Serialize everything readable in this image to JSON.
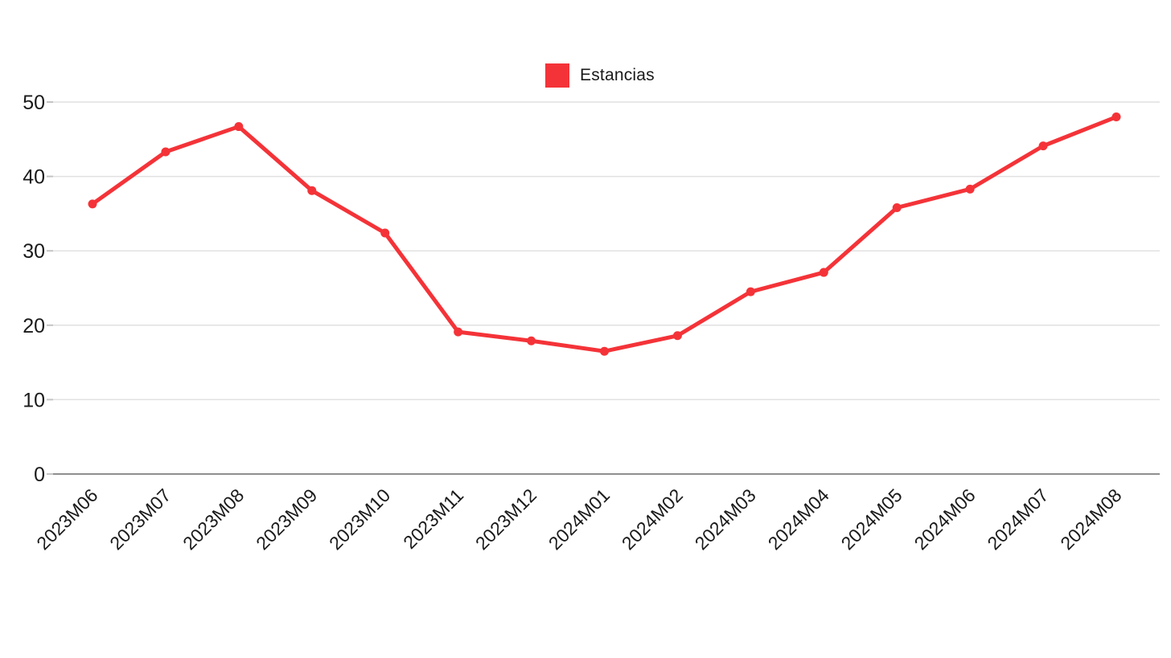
{
  "page": {
    "background_color": "#ffffff"
  },
  "legend": {
    "label": "Estancias",
    "swatch_color": "#f43338"
  },
  "chart_data": {
    "type": "line",
    "title": "",
    "xlabel": "",
    "ylabel": "",
    "categories": [
      "2023M06",
      "2023M07",
      "2023M08",
      "2023M09",
      "2023M10",
      "2023M11",
      "2023M12",
      "2024M01",
      "2024M02",
      "2024M03",
      "2024M04",
      "2024M05",
      "2024M06",
      "2024M07",
      "2024M08"
    ],
    "series": [
      {
        "name": "Estancias",
        "color": "#f43338",
        "values": [
          36.3,
          43.3,
          46.7,
          38.1,
          32.4,
          19.1,
          17.9,
          16.5,
          18.6,
          24.5,
          27.1,
          35.8,
          38.3,
          44.1,
          48.0
        ]
      }
    ],
    "y_ticks": [
      0,
      10,
      20,
      30,
      40,
      50
    ],
    "ylim": [
      0,
      50
    ],
    "grid": true,
    "legend_position": "top-center",
    "x_label_rotation_deg": -45,
    "gridline_color": "#e1e1e1",
    "axis_line_color": "#8f8f8f",
    "tick_mark_color": "#c4c4c4",
    "text_color": "#1a1a1a"
  }
}
